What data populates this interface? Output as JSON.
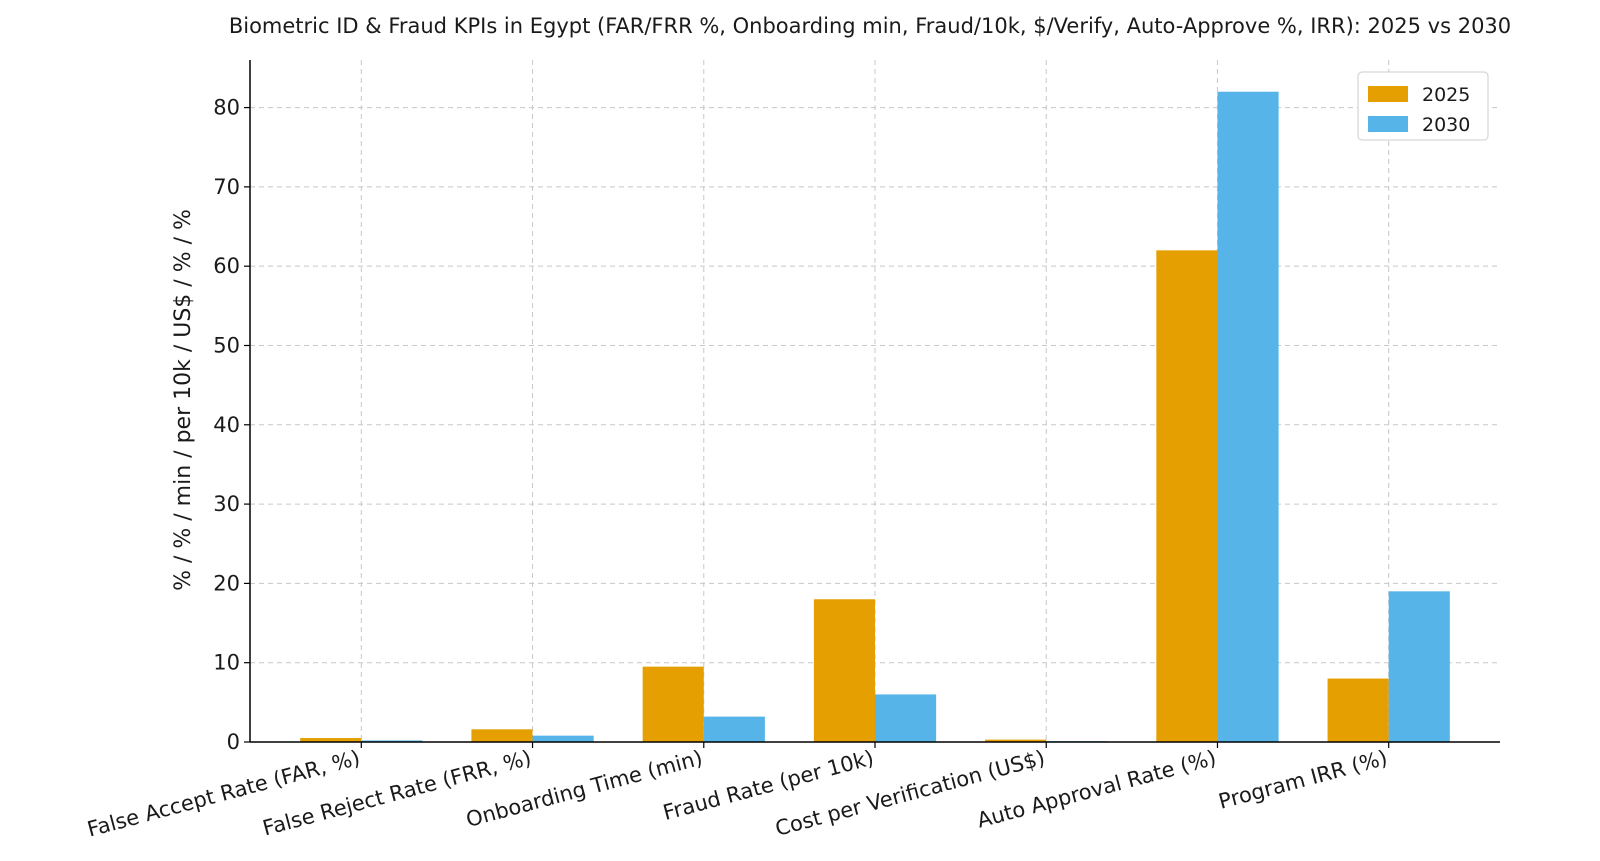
{
  "chart_data": {
    "type": "bar",
    "title": "Biometric ID & Fraud KPIs in Egypt (FAR/FRR %, Onboarding min, Fraud/10k, $/Verify, Auto-Approve %, IRR): 2025 vs 2030",
    "xlabel": "",
    "ylabel": "% / % / min / per 10k / US$ / % / %",
    "ylim": [
      0,
      86
    ],
    "yticks": [
      0,
      10,
      20,
      30,
      40,
      50,
      60,
      70,
      80
    ],
    "grid": true,
    "legend_position": "top-right",
    "categories": [
      "False Accept Rate (FAR, %)",
      "False Reject Rate (FRR, %)",
      "Onboarding Time (min)",
      "Fraud Rate (per 10k)",
      "Cost per Verification (US$)",
      "Auto Approval Rate (%)",
      "Program IRR (%)"
    ],
    "series": [
      {
        "name": "2025",
        "color": "#E69F00",
        "values": [
          0.5,
          1.6,
          9.5,
          18,
          0.3,
          62,
          8
        ]
      },
      {
        "name": "2030",
        "color": "#56B4E9",
        "values": [
          0.2,
          0.8,
          3.2,
          6,
          0.1,
          82,
          19
        ]
      }
    ]
  }
}
